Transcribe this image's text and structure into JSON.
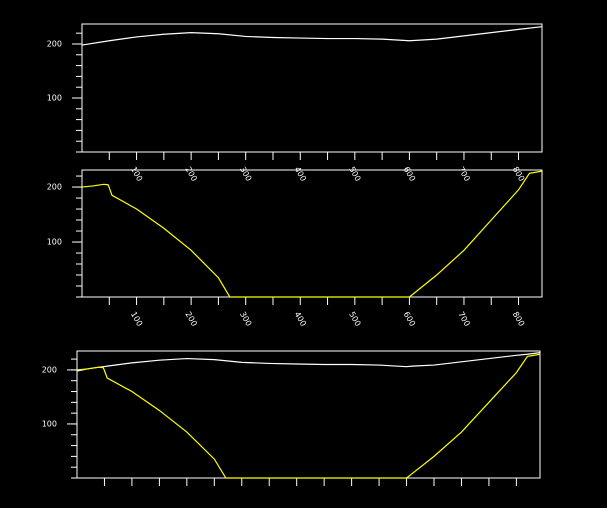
{
  "chart_data": [
    {
      "type": "line",
      "x": [
        0,
        50,
        100,
        150,
        200,
        250,
        300,
        350,
        400,
        450,
        500,
        550,
        600,
        650,
        700,
        750,
        800,
        843
      ],
      "series": [
        {
          "color": "#ffffff",
          "values": [
            198,
            206,
            213,
            218,
            221,
            219,
            214,
            212,
            211,
            210,
            210,
            209,
            206,
            209,
            215,
            221,
            227,
            232
          ]
        }
      ],
      "xlim": [
        0,
        843
      ],
      "xticks": [
        100,
        200,
        300,
        400,
        500,
        600,
        700,
        800
      ],
      "ylim": [
        0,
        237
      ],
      "yticks": [
        100,
        200
      ]
    },
    {
      "type": "line",
      "x": [
        0,
        20,
        40,
        48,
        55,
        100,
        150,
        200,
        250,
        271,
        300,
        400,
        500,
        600,
        610,
        650,
        700,
        750,
        800,
        820,
        843
      ],
      "series": [
        {
          "color": "#ffff00",
          "values": [
            200,
            202,
            205,
            204,
            185,
            160,
            125,
            85,
            35,
            0,
            0,
            0,
            0,
            0,
            8,
            40,
            85,
            140,
            195,
            225,
            229
          ]
        }
      ],
      "xlim": [
        0,
        843
      ],
      "xticks": [
        100,
        200,
        300,
        400,
        500,
        600,
        700,
        800
      ],
      "ylim": [
        0,
        231
      ],
      "yticks": [
        100,
        200
      ]
    },
    {
      "type": "line",
      "x": [
        0,
        20,
        40,
        48,
        55,
        100,
        150,
        200,
        250,
        271,
        300,
        350,
        400,
        450,
        500,
        550,
        600,
        610,
        650,
        700,
        750,
        800,
        820,
        843
      ],
      "series": [
        {
          "color": "#ffffff",
          "values": [
            198,
            202,
            205,
            206,
            207,
            213,
            218,
            221,
            219,
            217,
            214,
            212,
            211,
            210,
            210,
            209,
            206,
            207,
            209,
            215,
            221,
            227,
            229,
            232
          ]
        },
        {
          "color": "#ffff00",
          "values": [
            200,
            202,
            205,
            204,
            185,
            160,
            125,
            85,
            35,
            0,
            0,
            0,
            0,
            0,
            0,
            0,
            0,
            8,
            40,
            85,
            140,
            195,
            225,
            229
          ]
        }
      ],
      "xlim": [
        0,
        843
      ],
      "xticks": [
        50,
        100,
        150,
        200,
        250,
        300,
        350,
        400,
        450,
        500,
        550,
        600,
        650,
        700,
        750,
        800
      ],
      "xtick_labels": false,
      "ylim": [
        0,
        235
      ],
      "yticks": [
        100,
        200
      ]
    }
  ]
}
